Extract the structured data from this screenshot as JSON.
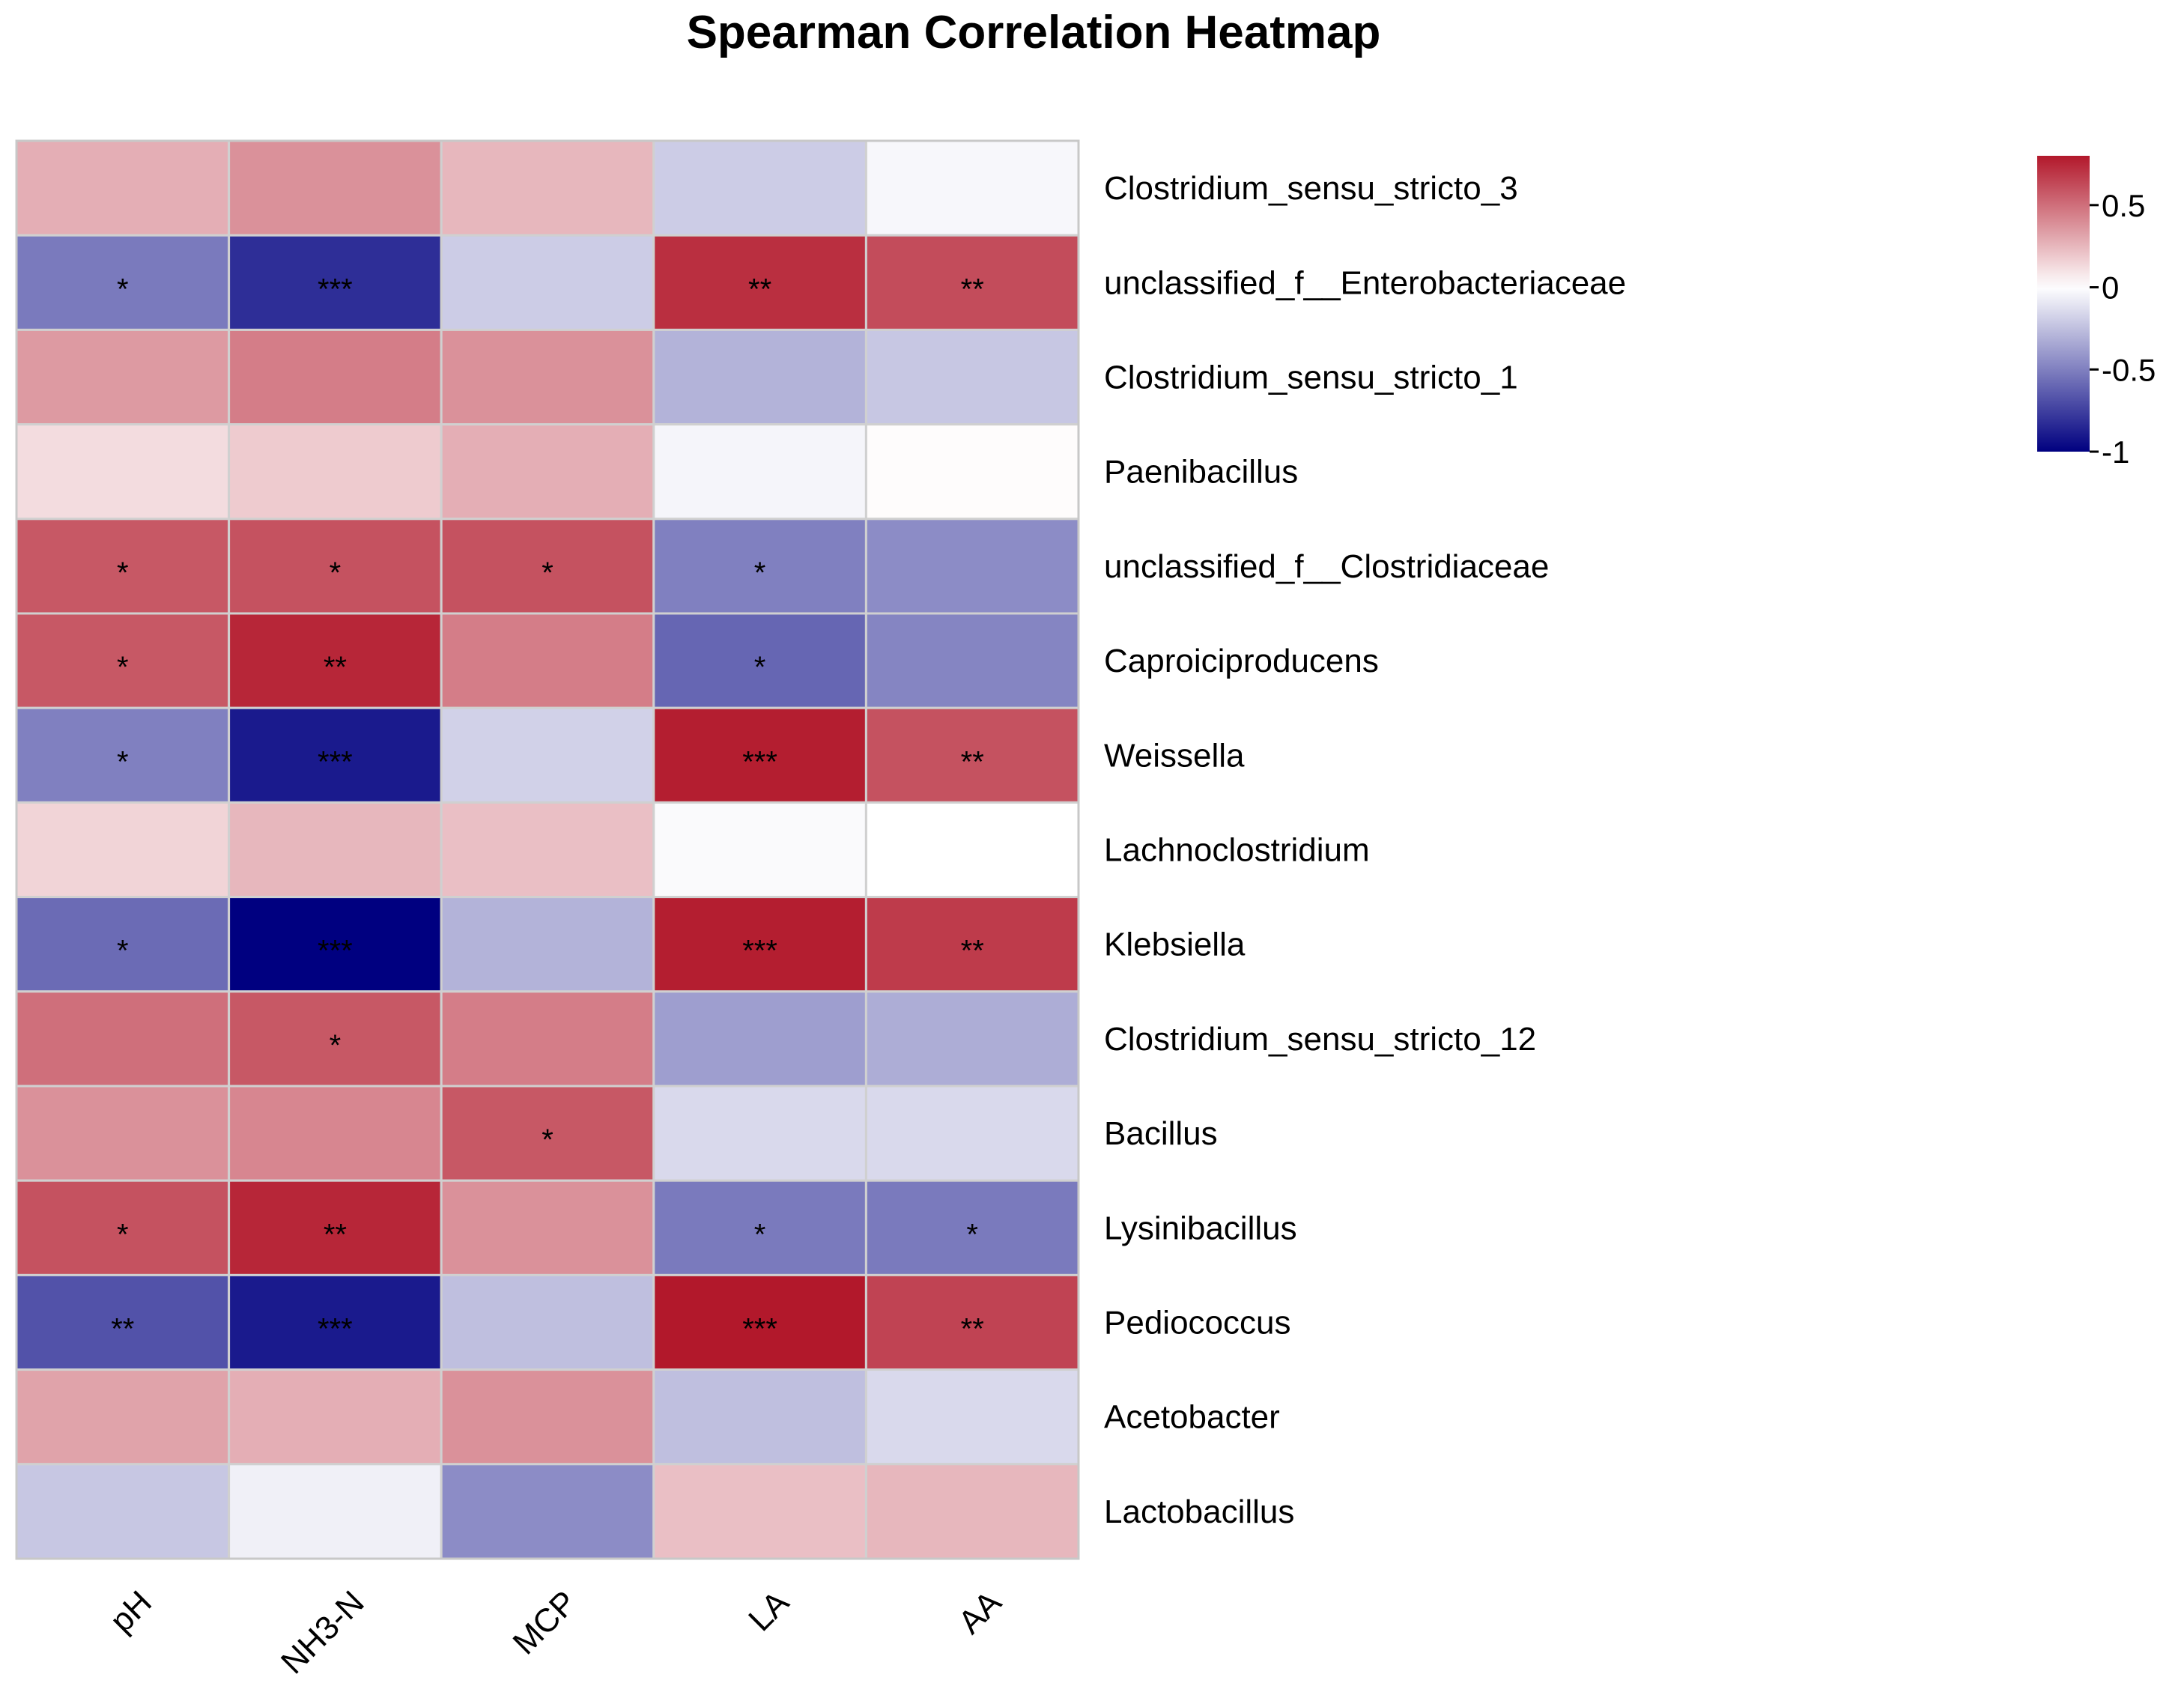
{
  "chart_data": {
    "type": "heatmap",
    "title": "Spearman Correlation Heatmap",
    "columns": [
      "pH",
      "NH3-N",
      "MCP",
      "LA",
      "AA"
    ],
    "rows": [
      "Clostridium_sensu_stricto_3",
      "unclassified_f__Enterobacteriaceae",
      "Clostridium_sensu_stricto_1",
      "Paenibacillus",
      "unclassified_f__Clostridiaceae",
      "Caproiciproducens",
      "Weissella",
      "Lachnoclostridium",
      "Klebsiella",
      "Clostridium_sensu_stricto_12",
      "Bacillus",
      "Lysinibacillus",
      "Pediococcus",
      "Acetobacter",
      "Lactobacillus"
    ],
    "values": [
      [
        0.28,
        0.38,
        0.25,
        -0.2,
        -0.03
      ],
      [
        -0.52,
        -0.82,
        -0.2,
        0.72,
        0.62
      ],
      [
        0.35,
        0.45,
        0.38,
        -0.3,
        -0.22
      ],
      [
        0.12,
        0.18,
        0.28,
        -0.04,
        0.01
      ],
      [
        0.58,
        0.6,
        0.6,
        -0.5,
        -0.45
      ],
      [
        0.58,
        0.75,
        0.45,
        -0.6,
        -0.48
      ],
      [
        -0.5,
        -0.9,
        -0.18,
        0.78,
        0.6
      ],
      [
        0.15,
        0.25,
        0.22,
        -0.02,
        0.0
      ],
      [
        -0.58,
        -1.0,
        -0.3,
        0.78,
        0.68
      ],
      [
        0.5,
        0.58,
        0.45,
        -0.38,
        -0.32
      ],
      [
        0.38,
        0.42,
        0.58,
        -0.15,
        -0.15
      ],
      [
        0.6,
        0.75,
        0.38,
        -0.52,
        -0.52
      ],
      [
        -0.68,
        -0.9,
        -0.25,
        0.82,
        0.65
      ],
      [
        0.32,
        0.28,
        0.38,
        -0.25,
        -0.15
      ],
      [
        -0.22,
        -0.06,
        -0.45,
        0.22,
        0.25
      ]
    ],
    "significance": [
      [
        "",
        "",
        "",
        "",
        ""
      ],
      [
        "*",
        "***",
        "",
        "**",
        "**"
      ],
      [
        "",
        "",
        "",
        "",
        ""
      ],
      [
        "",
        "",
        "",
        "",
        ""
      ],
      [
        "*",
        "*",
        "*",
        "*",
        ""
      ],
      [
        "*",
        "**",
        "",
        "*",
        ""
      ],
      [
        "*",
        "***",
        "",
        "***",
        "**"
      ],
      [
        "",
        "",
        "",
        "",
        ""
      ],
      [
        "*",
        "***",
        "",
        "***",
        "**"
      ],
      [
        "",
        "*",
        "",
        "",
        ""
      ],
      [
        "",
        "",
        "*",
        "",
        ""
      ],
      [
        "*",
        "**",
        "",
        "*",
        "*"
      ],
      [
        "**",
        "***",
        "",
        "***",
        "**"
      ],
      [
        "",
        "",
        "",
        "",
        ""
      ],
      [
        "",
        "",
        "",
        "",
        ""
      ]
    ],
    "color_scale": {
      "low": "#000080",
      "mid": "#ffffff",
      "high": "#b2182b",
      "range": [
        -1,
        0.8
      ]
    },
    "legend": {
      "ticks": [
        0.5,
        0,
        -0.5,
        -1
      ],
      "tick_labels": [
        "0.5",
        "0",
        "-0.5",
        "-1"
      ],
      "position": "top-right"
    }
  }
}
